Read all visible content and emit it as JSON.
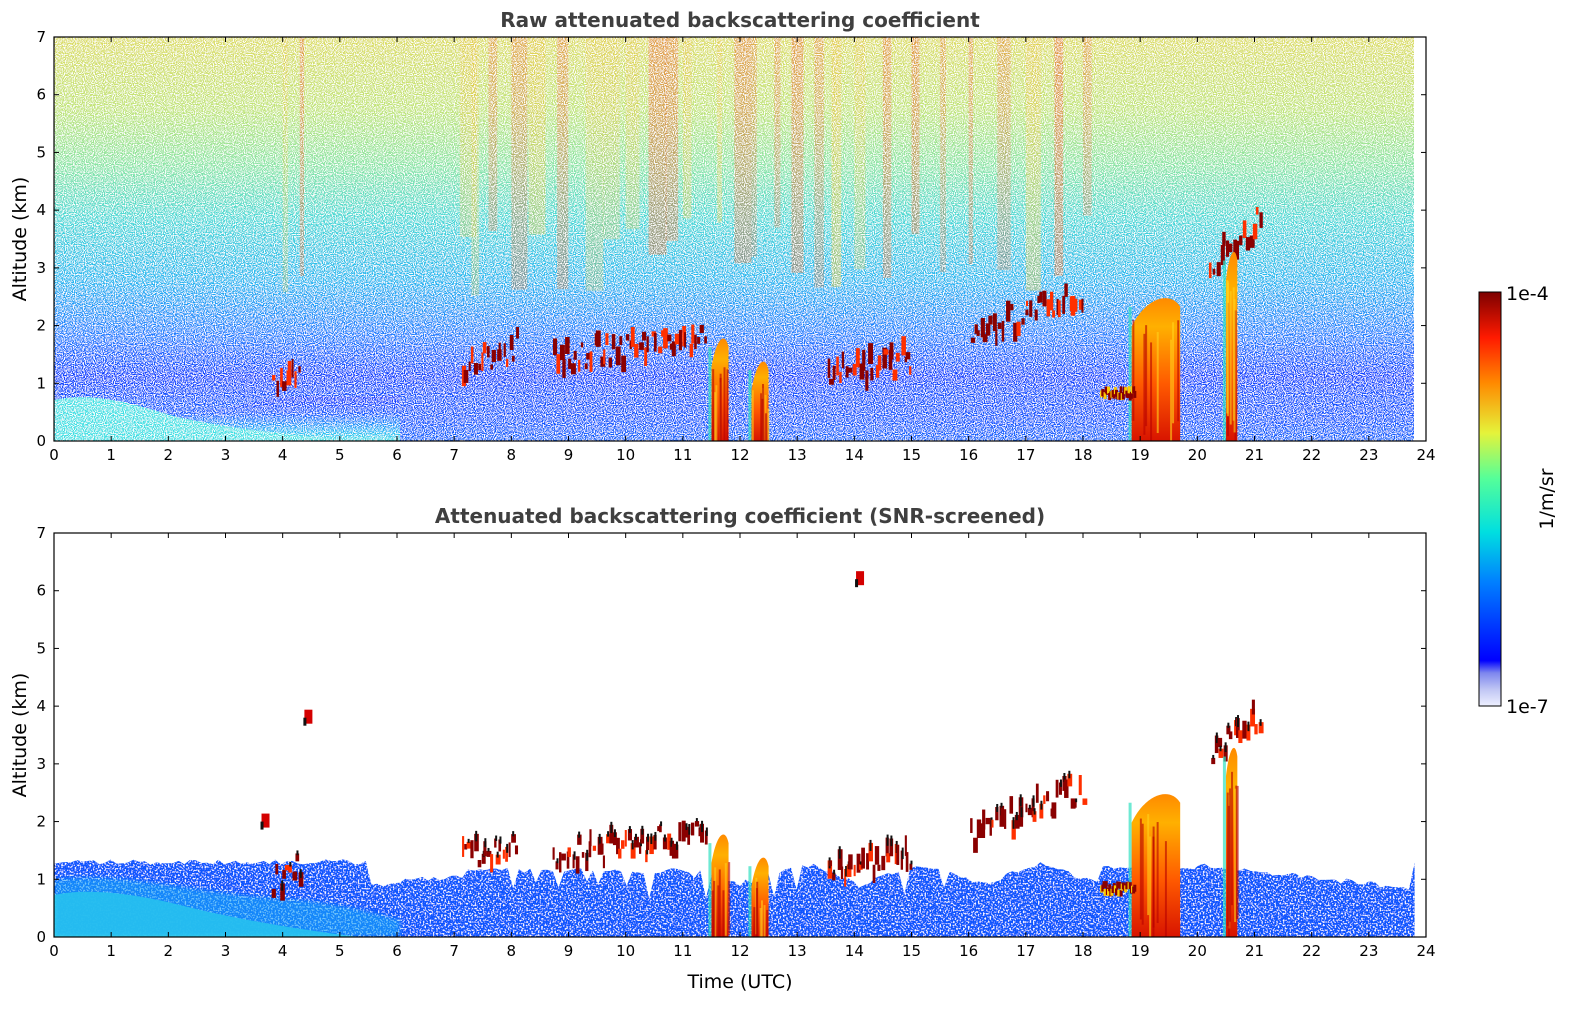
{
  "chart_data": [
    {
      "type": "heatmap",
      "title": "Raw attenuated backscattering coefficient",
      "xlabel": "",
      "ylabel": "Altitude (km)",
      "xlim": [
        0,
        24
      ],
      "ylim": [
        0,
        7
      ],
      "xticks": [
        "0",
        "1",
        "2",
        "3",
        "4",
        "5",
        "6",
        "7",
        "8",
        "9",
        "10",
        "11",
        "12",
        "13",
        "14",
        "15",
        "16",
        "17",
        "18",
        "19",
        "20",
        "21",
        "22",
        "23",
        "24"
      ],
      "yticks": [
        "0",
        "1",
        "2",
        "3",
        "4",
        "5",
        "6",
        "7"
      ],
      "data_end_hour": 23.8,
      "features": [
        {
          "kind": "cloud",
          "x0": 3.8,
          "x1": 4.3,
          "alt": 1.1
        },
        {
          "kind": "cloud",
          "x0": 7.1,
          "x1": 8.1,
          "alt": 1.5
        },
        {
          "kind": "cloud",
          "x0": 8.7,
          "x1": 11.4,
          "alt": 1.6
        },
        {
          "kind": "cloud",
          "x0": 13.5,
          "x1": 15.0,
          "alt": 1.3
        },
        {
          "kind": "cloud",
          "x0": 16.0,
          "x1": 18.0,
          "alt": 2.2
        },
        {
          "kind": "cloud",
          "x0": 20.2,
          "x1": 21.1,
          "alt": 3.5
        },
        {
          "kind": "precipitation",
          "x0": 18.85,
          "x1": 19.7,
          "top": 2.5
        },
        {
          "kind": "precipitation",
          "x0": 11.5,
          "x1": 11.8,
          "top": 1.8
        },
        {
          "kind": "precipitation",
          "x0": 12.2,
          "x1": 12.5,
          "top": 1.4
        },
        {
          "kind": "precipitation",
          "x0": 20.5,
          "x1": 20.7,
          "top": 3.3
        }
      ]
    },
    {
      "type": "heatmap",
      "title": "Attenuated backscattering coefficient (SNR-screened)",
      "xlabel": "Time (UTC)",
      "ylabel": "Altitude (km)",
      "xlim": [
        0,
        24
      ],
      "ylim": [
        0,
        7
      ],
      "xticks": [
        "0",
        "1",
        "2",
        "3",
        "4",
        "5",
        "6",
        "7",
        "8",
        "9",
        "10",
        "11",
        "12",
        "13",
        "14",
        "15",
        "16",
        "17",
        "18",
        "19",
        "20",
        "21",
        "22",
        "23",
        "24"
      ],
      "yticks": [
        "0",
        "1",
        "2",
        "3",
        "4",
        "5",
        "6",
        "7"
      ],
      "data_end_hour": 23.8,
      "isolated_features": [
        {
          "x": 14.1,
          "alt": 6.2
        },
        {
          "x": 4.45,
          "alt": 3.8
        },
        {
          "x": 3.7,
          "alt": 2.0
        }
      ]
    }
  ],
  "colorbar": {
    "label": "1/m/sr",
    "min_label": "1e-7",
    "max_label": "1e-4",
    "scale": "log",
    "colormap": "jet"
  },
  "colors": {
    "axis": "#000000",
    "title": "#3f3f3f",
    "background": "#ffffff"
  }
}
